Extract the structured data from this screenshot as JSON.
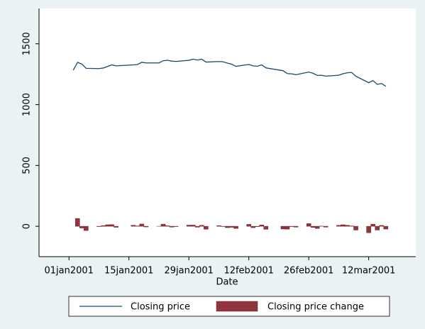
{
  "chart_data": {
    "type": "line-bar",
    "x_label": "Date",
    "x": [
      "2001-01-02",
      "2001-01-03",
      "2001-01-04",
      "2001-01-05",
      "2001-01-08",
      "2001-01-09",
      "2001-01-10",
      "2001-01-11",
      "2001-01-12",
      "2001-01-16",
      "2001-01-17",
      "2001-01-18",
      "2001-01-19",
      "2001-01-22",
      "2001-01-23",
      "2001-01-24",
      "2001-01-25",
      "2001-01-26",
      "2001-01-29",
      "2001-01-30",
      "2001-01-31",
      "2001-02-01",
      "2001-02-02",
      "2001-02-05",
      "2001-02-06",
      "2001-02-07",
      "2001-02-08",
      "2001-02-09",
      "2001-02-12",
      "2001-02-13",
      "2001-02-14",
      "2001-02-15",
      "2001-02-16",
      "2001-02-20",
      "2001-02-21",
      "2001-02-22",
      "2001-02-23",
      "2001-02-26",
      "2001-02-27",
      "2001-02-28",
      "2001-03-01",
      "2001-03-02",
      "2001-03-05",
      "2001-03-06",
      "2001-03-07",
      "2001-03-08",
      "2001-03-09",
      "2001-03-12",
      "2001-03-13",
      "2001-03-14",
      "2001-03-15",
      "2001-03-16"
    ],
    "series": [
      {
        "name": "Closing price",
        "kind": "line",
        "color": "#1a476f",
        "values": [
          1283.27,
          1347.56,
          1333.34,
          1298.35,
          1295.86,
          1300.8,
          1313.27,
          1326.82,
          1318.55,
          1326.65,
          1329.47,
          1347.97,
          1342.54,
          1342.9,
          1360.4,
          1364.3,
          1357.51,
          1354.95,
          1364.17,
          1373.73,
          1366.01,
          1373.47,
          1349.47,
          1354.31,
          1352.26,
          1340.89,
          1332.53,
          1314.76,
          1330.31,
          1318.8,
          1315.92,
          1326.61,
          1301.53,
          1278.94,
          1255.27,
          1252.82,
          1245.86,
          1267.65,
          1257.94,
          1239.94,
          1241.23,
          1234.18,
          1241.41,
          1253.8,
          1261.89,
          1264.74,
          1233.42,
          1180.16,
          1197.66,
          1166.71,
          1173.56,
          1150.53
        ]
      },
      {
        "name": "Closing price change",
        "kind": "bar",
        "color": "#90353b",
        "values": [
          null,
          64.29,
          -14.22,
          -34.99,
          -2.49,
          4.94,
          12.47,
          13.55,
          -8.27,
          8.1,
          2.82,
          18.5,
          -5.43,
          0.36,
          17.5,
          3.9,
          -6.79,
          -2.56,
          9.22,
          9.56,
          -7.72,
          7.46,
          -24,
          4.84,
          -2.05,
          -11.37,
          -8.36,
          -17.77,
          15.55,
          -11.51,
          -2.88,
          10.69,
          -25.08,
          -22.59,
          -23.67,
          -2.45,
          -6.96,
          21.79,
          -9.71,
          -18,
          1.29,
          -7.05,
          7.23,
          12.39,
          8.09,
          2.85,
          -31.32,
          -53.26,
          17.5,
          -30.95,
          6.85,
          -23.03
        ]
      }
    ],
    "xlim": [
      "2000-12-25",
      "2001-03-23"
    ],
    "xticks": [
      {
        "value": "2001-01-01",
        "label": "01jan2001"
      },
      {
        "value": "2001-01-15",
        "label": "15jan2001"
      },
      {
        "value": "2001-01-29",
        "label": "29jan2001"
      },
      {
        "value": "2001-02-12",
        "label": "12feb2001"
      },
      {
        "value": "2001-02-26",
        "label": "26feb2001"
      },
      {
        "value": "2001-03-12",
        "label": "12mar2001"
      }
    ],
    "ylim": [
      -250,
      1790
    ],
    "yticks": [
      0,
      500,
      1000,
      1500
    ],
    "grid": false,
    "legend": "bottom"
  }
}
